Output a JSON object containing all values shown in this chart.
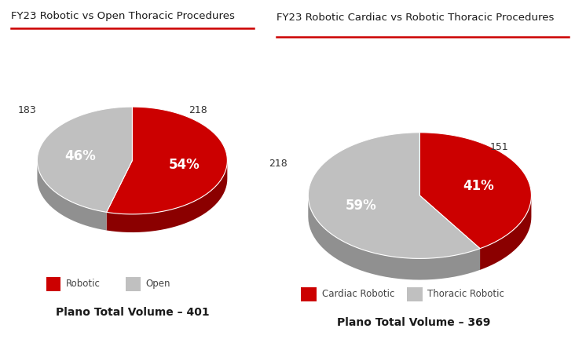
{
  "chart1": {
    "title": "FY23 Robotic vs Open Thoracic Procedures",
    "values": [
      218,
      183
    ],
    "colors": [
      "#cc0000",
      "#c0c0c0"
    ],
    "dark_colors": [
      "#8b0000",
      "#909090"
    ],
    "pct_labels": [
      "54%",
      "46%"
    ],
    "count_labels": [
      "218",
      "183"
    ],
    "legend_labels": [
      "Robotic",
      "Open"
    ],
    "total_label": "Plano Total Volume – 401",
    "start_angle": 90,
    "counterclock": false
  },
  "chart2": {
    "title": "FY23 Robotic Cardiac vs Robotic Thoracic Procedures",
    "values": [
      151,
      218
    ],
    "colors": [
      "#cc0000",
      "#c0c0c0"
    ],
    "dark_colors": [
      "#8b0000",
      "#909090"
    ],
    "pct_labels": [
      "41%",
      "59%"
    ],
    "count_labels": [
      "151",
      "218"
    ],
    "legend_labels": [
      "Cardiac Robotic",
      "Thoracic Robotic"
    ],
    "total_label": "Plano Total Volume – 369",
    "start_angle": 90,
    "counterclock": false
  },
  "background_color": "#ffffff",
  "title_fontsize": 9.5,
  "pct_fontsize": 12,
  "count_fontsize": 9,
  "legend_fontsize": 8.5,
  "total_fontsize": 10,
  "underline_color": "#cc0000"
}
